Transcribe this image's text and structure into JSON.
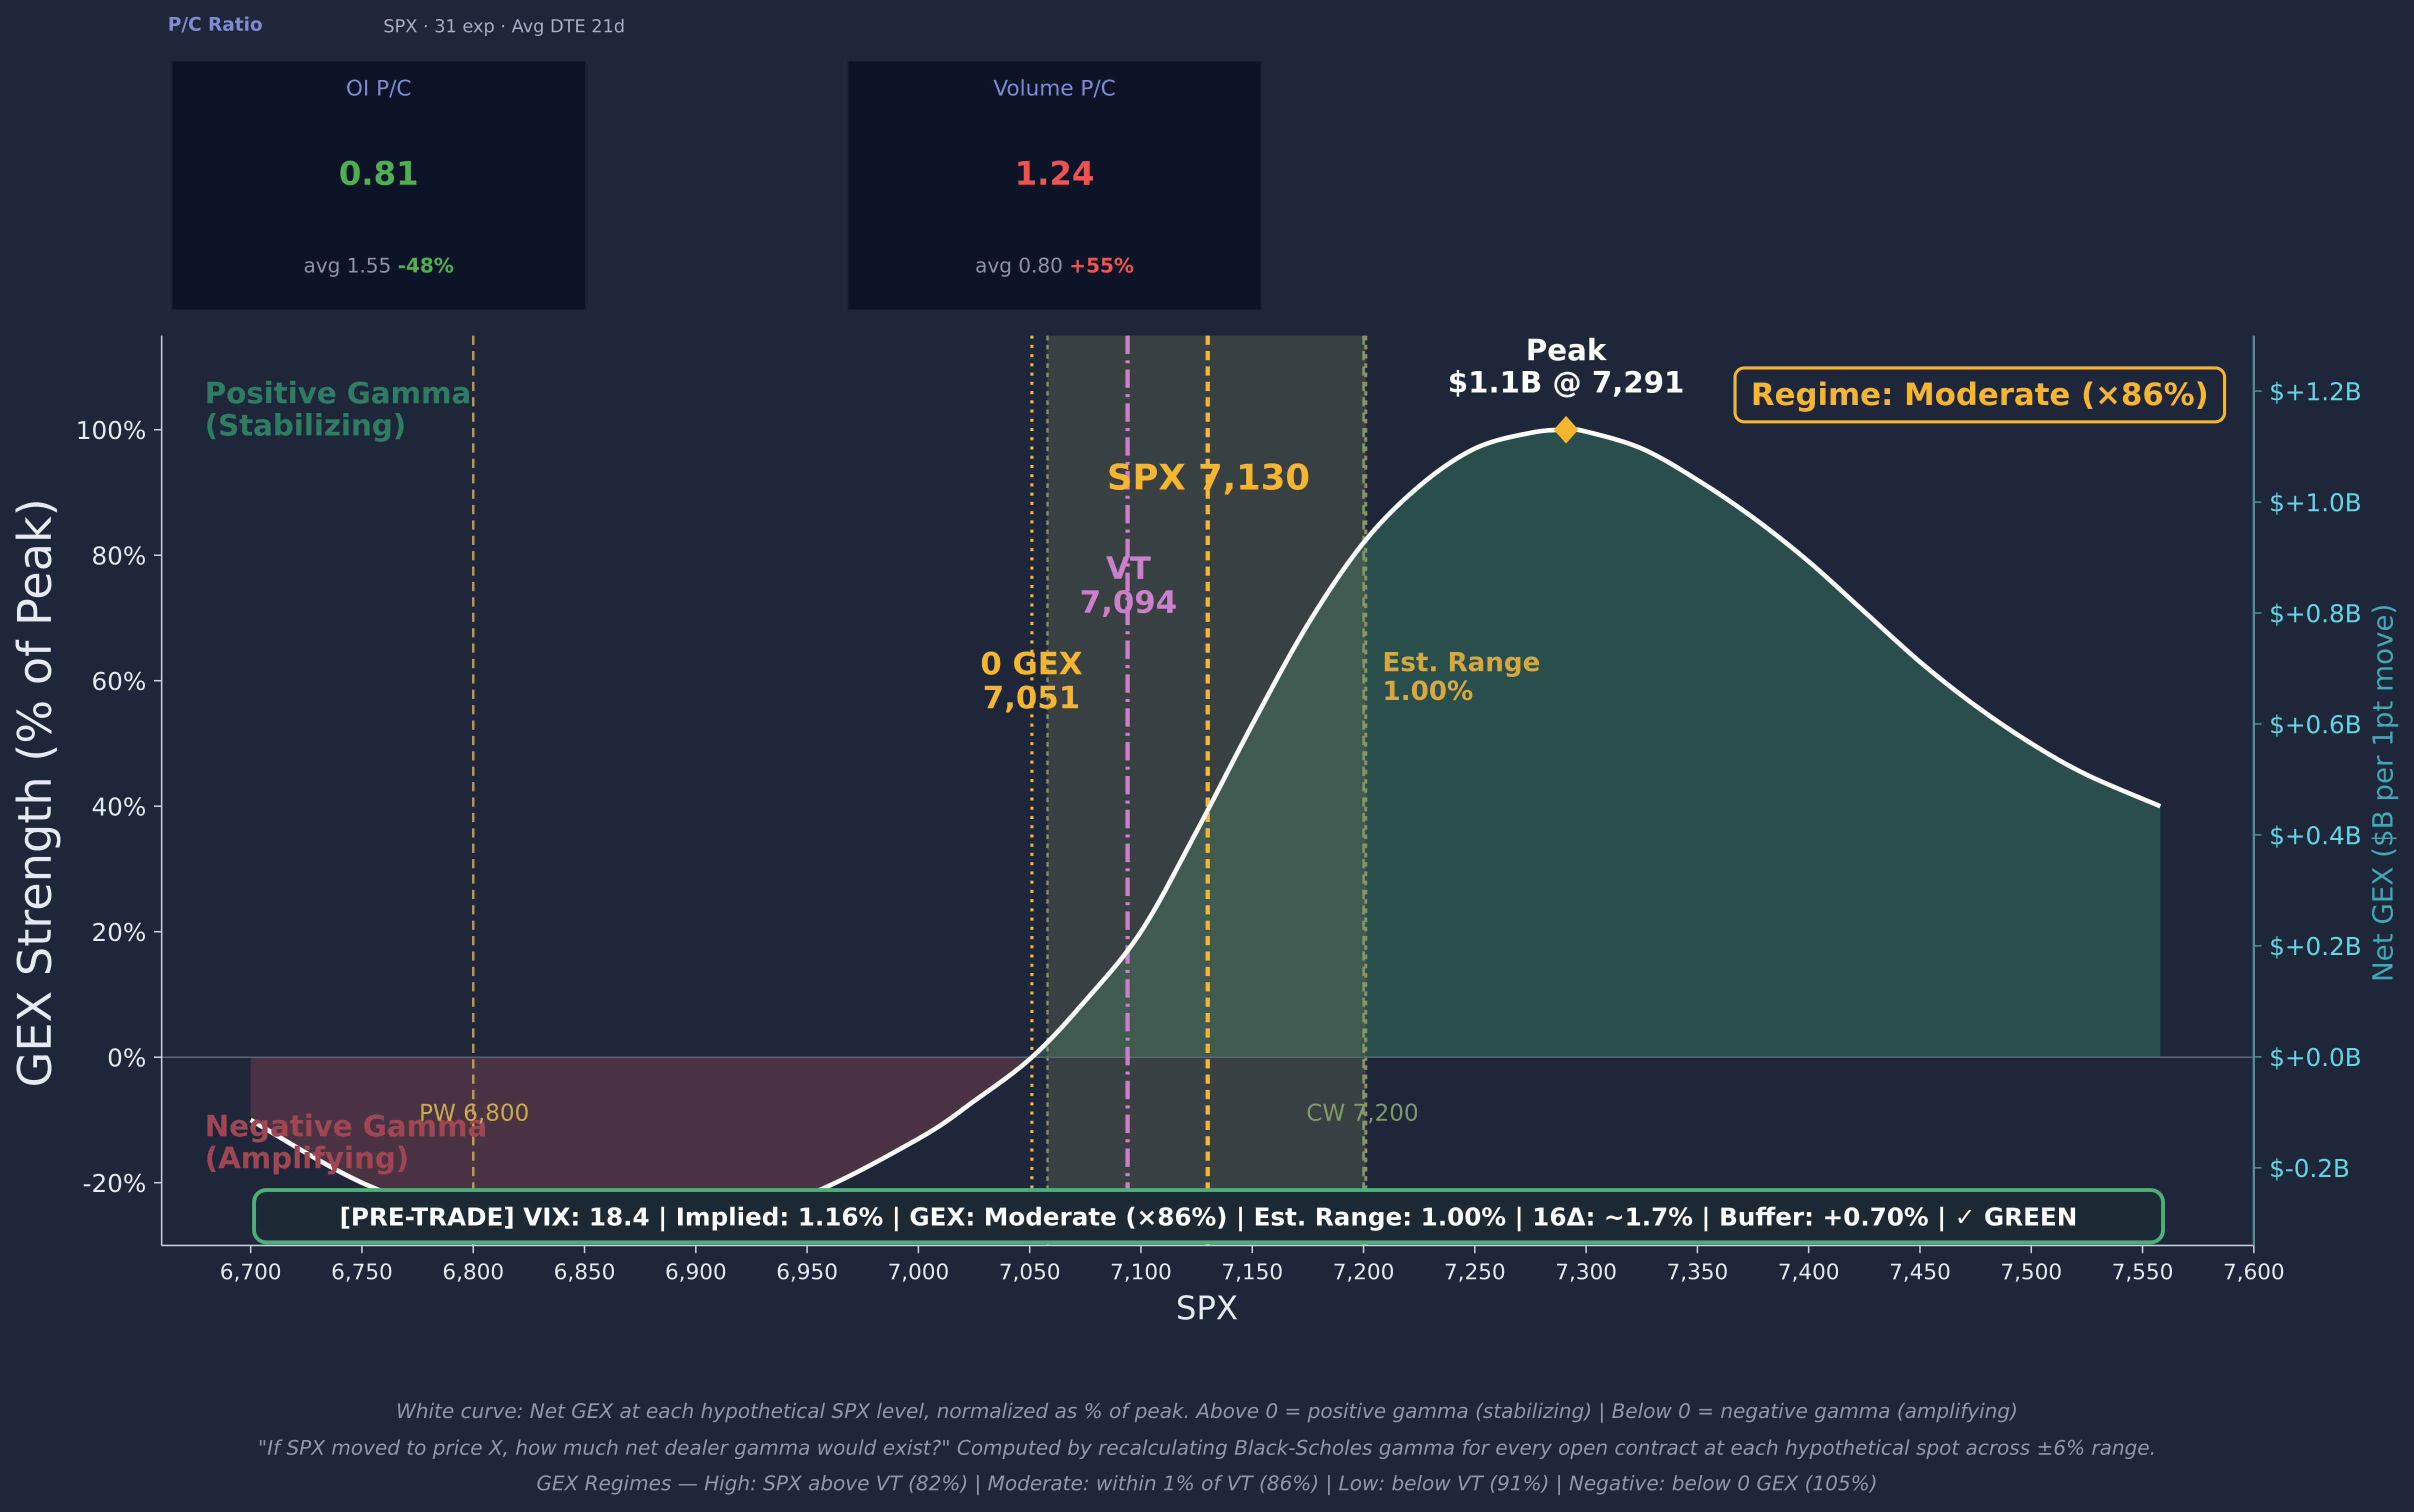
{
  "header": {
    "title": "P/C Ratio",
    "subtitle": "SPX · 31 exp · Avg DTE 21d"
  },
  "cards": [
    {
      "title": "OI P/C",
      "value": "0.81",
      "avg_label": "avg 1.55",
      "change": "-48%",
      "value_color": "#4caf50",
      "change_color": "#4caf50"
    },
    {
      "title": "Volume P/C",
      "value": "1.24",
      "avg_label": "avg 0.80",
      "change": "+55%",
      "value_color": "#ef5350",
      "change_color": "#ef5350"
    }
  ],
  "chart_data": {
    "type": "area",
    "xlabel": "SPX",
    "ylabel": "GEX Strength (% of Peak)",
    "y2label": "Net GEX ($B per 1pt move)",
    "xlim": [
      6660,
      7600
    ],
    "ylim": [
      -30,
      115
    ],
    "y2lim": [
      -0.34,
      1.3
    ],
    "x_ticks": [
      6700,
      6750,
      6800,
      6850,
      6900,
      6950,
      7000,
      7050,
      7100,
      7150,
      7200,
      7250,
      7300,
      7350,
      7400,
      7450,
      7500,
      7550,
      7600
    ],
    "x_tick_labels": [
      "6,700",
      "6,750",
      "6,800",
      "6,850",
      "6,900",
      "6,950",
      "7,000",
      "7,050",
      "7,100",
      "7,150",
      "7,200",
      "7,250",
      "7,300",
      "7,350",
      "7,400",
      "7,450",
      "7,500",
      "7,550",
      "7,600"
    ],
    "y_ticks": [
      -20,
      0,
      20,
      40,
      60,
      80,
      100
    ],
    "y_tick_labels": [
      "-20%",
      "0%",
      "20%",
      "40%",
      "60%",
      "80%",
      "100%"
    ],
    "y2_ticks": [
      -0.2,
      0.0,
      0.2,
      0.4,
      0.6,
      0.8,
      1.0,
      1.2
    ],
    "y2_tick_labels": [
      "$-0.2B",
      "$+0.0B",
      "$+0.2B",
      "$+0.4B",
      "$+0.6B",
      "$+0.8B",
      "$+1.0B",
      "$+1.2B"
    ],
    "series": [
      {
        "values_x": [
          6700,
          6750,
          6800,
          6850,
          6900,
          6950,
          7000,
          7025,
          7051,
          7075,
          7100,
          7125,
          7150,
          7175,
          7200,
          7225,
          7250,
          7275,
          7291,
          7300,
          7325,
          7350,
          7375,
          7400,
          7425,
          7450,
          7475,
          7500,
          7525,
          7558
        ],
        "values_y": [
          -10,
          -20,
          -26,
          -28.5,
          -27,
          -22,
          -13,
          -7,
          0,
          9,
          20,
          36,
          53,
          69,
          82,
          91,
          97,
          99.5,
          100,
          99.7,
          97,
          92,
          86,
          79,
          71,
          63,
          56,
          50,
          45,
          40
        ]
      }
    ],
    "regions": [
      {
        "label": "Positive Gamma\n(Stabilizing)",
        "color": "#2e7d62"
      },
      {
        "label": "Negative Gamma\n(Amplifying)",
        "color": "#a04552"
      }
    ],
    "est_range_band": [
      7058,
      7201
    ],
    "vlines": [
      {
        "x": 6800,
        "label": "PW 6,800",
        "color": "#b29a55",
        "style": "dashed"
      },
      {
        "x": 7200,
        "label": "CW 7,200",
        "color": "#7e9a68",
        "style": "dashed"
      },
      {
        "x": 7051,
        "label": "0 GEX\n7,051",
        "color": "#f5b52e",
        "style": "dotted"
      },
      {
        "x": 7094,
        "label": "VT\n7,094",
        "color": "#c97fc9",
        "style": "dashdot"
      },
      {
        "x": 7130,
        "label": "SPX 7,130",
        "color": "#f5b52e",
        "style": "dashed"
      }
    ],
    "est_range_label": "Est. Range\n1.00%",
    "peak": {
      "x": 7291,
      "y": 100,
      "label": "Peak\n$1.1B @ 7,291"
    },
    "regime_label": "Regime: Moderate (×86%)",
    "status_bar": "[PRE-TRADE]  VIX: 18.4  |  Implied: 1.16%  |  GEX: Moderate (×86%)  |  Est. Range: 1.00%  |  16Δ: ~1.7%  |  Buffer: +0.70%  |  ✓ GREEN",
    "grid": false
  },
  "footnotes": [
    "White curve: Net GEX at each hypothetical SPX level, normalized as % of peak.  Above 0 = positive gamma (stabilizing)  |  Below 0 = negative gamma (amplifying)",
    "\"If SPX moved to price X, how much net dealer gamma would exist?\" Computed by recalculating Black-Scholes gamma for every open contract at each hypothetical spot across ±6% range.",
    "GEX Regimes — High: SPX above VT (82%)  |  Moderate: within 1% of VT (86%)  |  Low: below VT (91%)  |  Negative: below 0 GEX (105%)"
  ]
}
